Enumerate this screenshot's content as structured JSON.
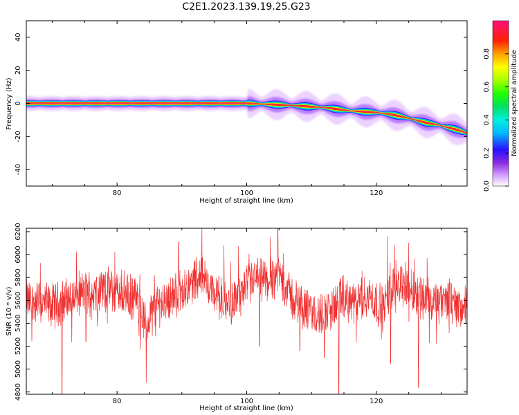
{
  "title": "C2E1.2023.139.19.25.G23",
  "chart_data": [
    {
      "type": "heatmap",
      "xlabel": "Height of straight line (km)",
      "ylabel": "Frequency (Hz)",
      "xlim": [
        66,
        134
      ],
      "ylim": [
        -50,
        50
      ],
      "xticks": [
        80,
        100,
        120
      ],
      "yticks": [
        -40,
        -20,
        0,
        20,
        40
      ],
      "colorbar": {
        "label": "Normalized spectral amplitude",
        "range": [
          0,
          1
        ],
        "ticks": [
          0.0,
          0.2,
          0.4,
          0.6,
          0.8
        ],
        "tick_labels": [
          "0.0",
          "0.2",
          "0.4",
          "0.6",
          "0.8"
        ]
      },
      "ridge": {
        "x": [
          66,
          70,
          75,
          80,
          85,
          90,
          95,
          100,
          103,
          106,
          108,
          110,
          112,
          114,
          116,
          118,
          120,
          122,
          124,
          126,
          128,
          129.5,
          131,
          132.5,
          134
        ],
        "y": [
          0,
          0,
          0,
          0,
          0,
          0,
          0,
          0,
          -0.5,
          -1,
          -1.5,
          -2,
          -2.5,
          -3.5,
          -4.5,
          -5,
          -5.5,
          -6.5,
          -8,
          -10,
          -12,
          -13,
          -14.5,
          -16,
          -18
        ]
      }
    },
    {
      "type": "line",
      "xlabel": "Height of straight line (km)",
      "ylabel": "SNR (10 * v/v)",
      "xlim": [
        66,
        134
      ],
      "ylim": [
        4780,
        6230
      ],
      "xticks": [
        80,
        100,
        120
      ],
      "yticks": [
        4800,
        5000,
        5200,
        5400,
        5600,
        5800,
        6000,
        6200
      ],
      "series": [
        {
          "color": "#f03030",
          "x_range": [
            66,
            134
          ],
          "n_points": 1600,
          "baseline": [
            [
              66,
              5600
            ],
            [
              70,
              5550
            ],
            [
              74,
              5650
            ],
            [
              78,
              5700
            ],
            [
              81,
              5660
            ],
            [
              83,
              5600
            ],
            [
              84.5,
              5380
            ],
            [
              86,
              5560
            ],
            [
              90,
              5680
            ],
            [
              93,
              5820
            ],
            [
              95,
              5660
            ],
            [
              97,
              5560
            ],
            [
              99,
              5640
            ],
            [
              101,
              5780
            ],
            [
              103,
              5760
            ],
            [
              105,
              5840
            ],
            [
              107,
              5620
            ],
            [
              109,
              5520
            ],
            [
              111,
              5460
            ],
            [
              113,
              5520
            ],
            [
              115,
              5620
            ],
            [
              117,
              5560
            ],
            [
              119,
              5640
            ],
            [
              121,
              5520
            ],
            [
              123,
              5780
            ],
            [
              125,
              5700
            ],
            [
              127,
              5640
            ],
            [
              129,
              5560
            ],
            [
              131,
              5600
            ],
            [
              133,
              5540
            ],
            [
              134,
              5540
            ]
          ],
          "spread": 170,
          "dips": [
            [
              71.5,
              4780
            ],
            [
              84.5,
              4880
            ],
            [
              114.2,
              4780
            ],
            [
              126.5,
              4840
            ],
            [
              122.2,
              5050
            ],
            [
              75.2,
              5240
            ],
            [
              112,
              5100
            ],
            [
              108.2,
              5160
            ],
            [
              102,
              5200
            ]
          ],
          "peaks": [
            [
              93.1,
              6230
            ],
            [
              104.8,
              6230
            ],
            [
              121.7,
              6160
            ],
            [
              89.5,
              6110
            ],
            [
              96.5,
              6080
            ]
          ]
        }
      ]
    }
  ]
}
